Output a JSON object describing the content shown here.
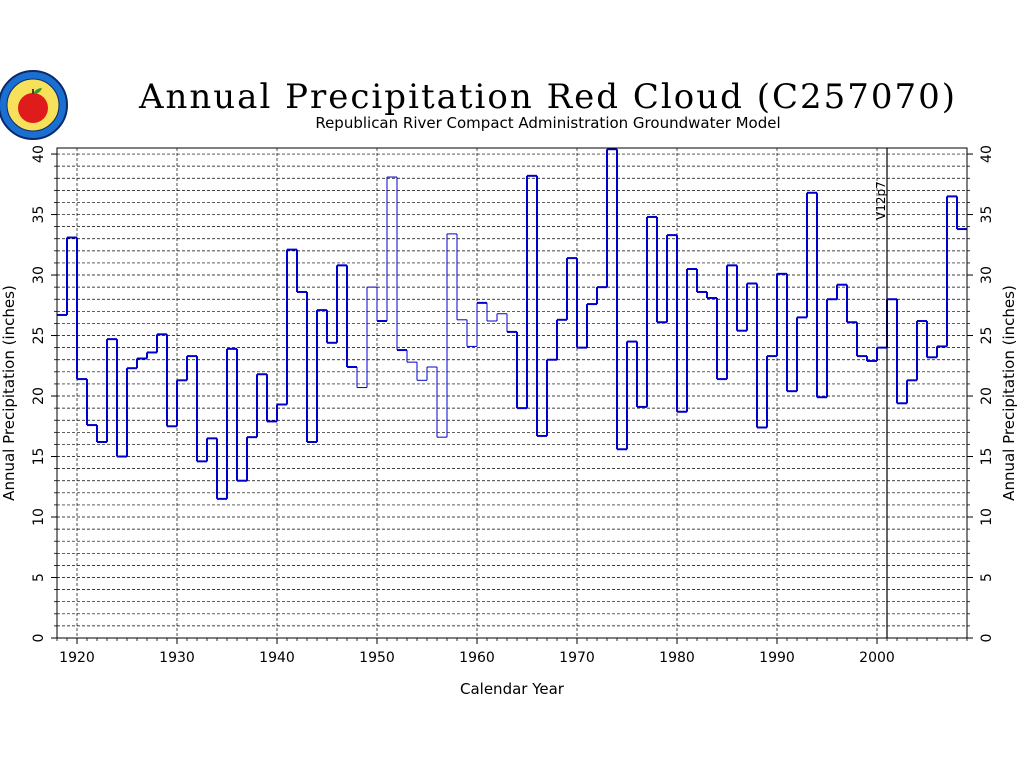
{
  "chart_data": {
    "type": "line",
    "step": true,
    "title": "Annual Precipitation Red Cloud (C257070)",
    "subtitle": "Republican River Compact Administration Groundwater Model",
    "xlabel": "Calendar Year",
    "ylabel": "Annual Precipitation (inches)",
    "ylabel_right": "Annual Precipitation (inches)",
    "xlim": [
      1918,
      2009
    ],
    "ylim": [
      0,
      40.5
    ],
    "x_ticks": [
      1920,
      1930,
      1940,
      1950,
      1960,
      1970,
      1980,
      1990,
      2000
    ],
    "y_ticks": [
      0,
      5,
      10,
      15,
      20,
      25,
      30,
      35,
      40
    ],
    "y_minor_step": 1,
    "grid": true,
    "series_color": "#0000cc",
    "annotation": {
      "text": "V12p7",
      "x": 2001
    },
    "thin_segments": [
      [
        1948,
        1950
      ],
      [
        1951,
        1952
      ],
      [
        1953,
        1960
      ],
      [
        1961,
        1963
      ]
    ],
    "x": [
      1918,
      1919,
      1920,
      1921,
      1922,
      1923,
      1924,
      1925,
      1926,
      1927,
      1928,
      1929,
      1930,
      1931,
      1932,
      1933,
      1934,
      1935,
      1936,
      1937,
      1938,
      1939,
      1940,
      1941,
      1942,
      1943,
      1944,
      1945,
      1946,
      1947,
      1948,
      1949,
      1950,
      1951,
      1952,
      1953,
      1954,
      1955,
      1956,
      1957,
      1958,
      1959,
      1960,
      1961,
      1962,
      1963,
      1964,
      1965,
      1966,
      1967,
      1968,
      1969,
      1970,
      1971,
      1972,
      1973,
      1974,
      1975,
      1976,
      1977,
      1978,
      1979,
      1980,
      1981,
      1982,
      1983,
      1984,
      1985,
      1986,
      1987,
      1988,
      1989,
      1990,
      1991,
      1992,
      1993,
      1994,
      1995,
      1996,
      1997,
      1998,
      1999,
      2000,
      2001,
      2002,
      2003,
      2004,
      2005,
      2006,
      2007,
      2008
    ],
    "values": [
      26.7,
      33.1,
      21.4,
      17.6,
      16.2,
      24.7,
      15.0,
      22.3,
      23.1,
      23.6,
      25.1,
      17.5,
      21.3,
      23.3,
      14.6,
      16.5,
      11.5,
      23.9,
      13.0,
      16.6,
      21.8,
      17.9,
      19.3,
      32.1,
      28.6,
      16.2,
      27.1,
      24.4,
      30.8,
      22.4,
      20.7,
      29.0,
      26.2,
      38.1,
      23.8,
      22.8,
      21.3,
      22.4,
      16.6,
      33.4,
      26.3,
      24.1,
      27.7,
      26.2,
      26.8,
      25.3,
      19.0,
      38.2,
      16.7,
      23.0,
      26.3,
      31.4,
      24.0,
      27.6,
      29.0,
      40.4,
      15.6,
      24.5,
      19.1,
      34.8,
      26.1,
      33.3,
      18.7,
      30.5,
      28.6,
      28.1,
      21.4,
      30.8,
      25.4,
      29.3,
      17.4,
      23.3,
      30.1,
      20.4,
      26.5,
      36.8,
      19.9,
      28.0,
      29.2,
      26.1,
      23.3,
      22.9,
      24.0,
      28.0,
      19.4,
      21.3,
      26.2,
      23.2,
      24.1,
      36.5,
      33.8
    ]
  }
}
